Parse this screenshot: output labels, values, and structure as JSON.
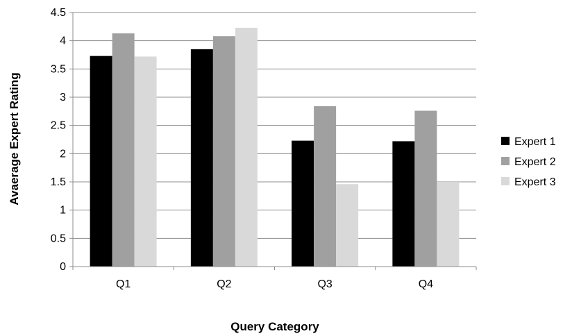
{
  "chart_data": {
    "type": "bar",
    "title": "",
    "xlabel": "Query Category",
    "ylabel": "Avaerage Expert Rating",
    "categories": [
      "Q1",
      "Q2",
      "Q3",
      "Q4"
    ],
    "ylim": [
      0,
      4.5
    ],
    "yticks": [
      "0",
      "0.5",
      "1",
      "1.5",
      "2",
      "2.5",
      "3",
      "3.5",
      "4",
      "4.5"
    ],
    "grid": "horizontal",
    "legend_position": "right",
    "series": [
      {
        "name": "Expert 1",
        "color": "#000000",
        "values": [
          3.73,
          3.85,
          2.23,
          2.22
        ]
      },
      {
        "name": "Expert 2",
        "color": "#a0a0a0",
        "values": [
          4.13,
          4.08,
          2.84,
          2.76
        ]
      },
      {
        "name": "Expert 3",
        "color": "#d9d9d9",
        "values": [
          3.72,
          4.23,
          1.46,
          1.5
        ]
      }
    ]
  }
}
